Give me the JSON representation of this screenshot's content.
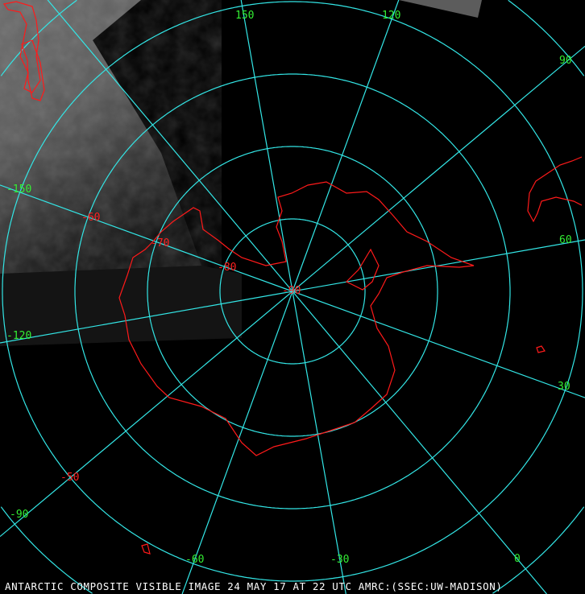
{
  "caption": "ANTARCTIC COMPOSITE VISIBLE IMAGE 24 MAY 17 AT 22 UTC AMRC:(SSEC:UW-MADISON)",
  "colors": {
    "graticule": "#33e6e6",
    "coastline": "#ff1a1a",
    "longitude_labels": "#33ee33",
    "latitude_labels": "#ff2020",
    "background": "#000000"
  },
  "projection": "south-polar-stereographic",
  "longitude_labels": [
    "150",
    "120",
    "90",
    "60",
    "30",
    "0",
    "-30",
    "-60",
    "-90",
    "-120",
    "-150"
  ],
  "latitude_labels": [
    "-50",
    "-60",
    "-70",
    "-80",
    "-90"
  ]
}
